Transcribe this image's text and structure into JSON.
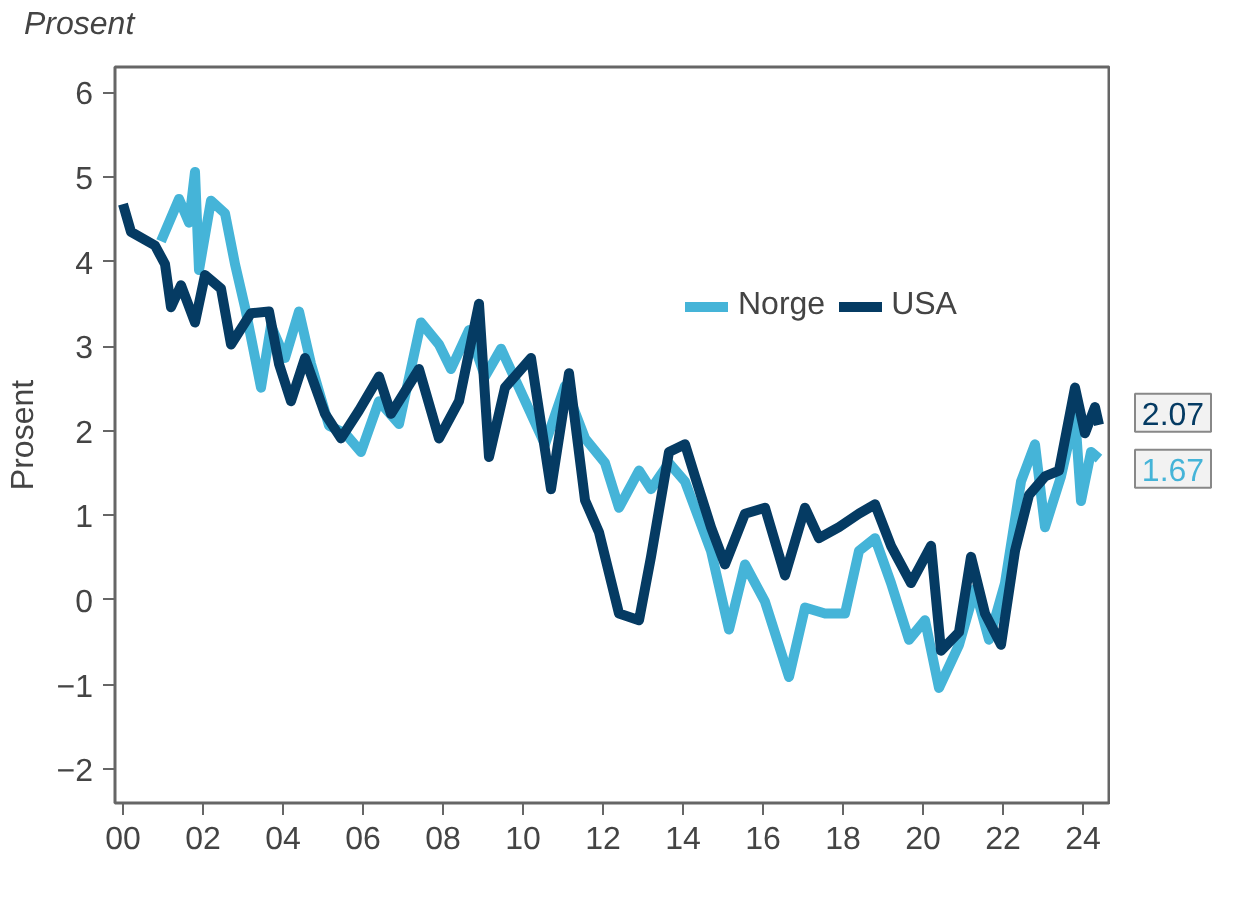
{
  "chart_data": {
    "type": "line",
    "title": "Prosent",
    "ylabel": "Prosent",
    "xlim": [
      1999.8,
      2024.7
    ],
    "xticks": [
      {
        "value": 2000,
        "label": "00"
      },
      {
        "value": 2002,
        "label": "02"
      },
      {
        "value": 2004,
        "label": "04"
      },
      {
        "value": 2006,
        "label": "06"
      },
      {
        "value": 2008,
        "label": "08"
      },
      {
        "value": 2010,
        "label": "10"
      },
      {
        "value": 2012,
        "label": "12"
      },
      {
        "value": 2014,
        "label": "14"
      },
      {
        "value": 2016,
        "label": "16"
      },
      {
        "value": 2018,
        "label": "18"
      },
      {
        "value": 2020,
        "label": "20"
      },
      {
        "value": 2022,
        "label": "22"
      },
      {
        "value": 2024,
        "label": "24"
      }
    ],
    "ylim": [
      -2.4,
      6.3
    ],
    "yticks": [
      -2,
      -1,
      0,
      1,
      2,
      3,
      4,
      5,
      6
    ],
    "grid": false,
    "legend": "top right",
    "series": [
      {
        "name": "Norge",
        "color": "#45b4d8",
        "x": [
          2000.95,
          2001.4,
          2001.65,
          2001.8,
          2001.9,
          2002.2,
          2002.55,
          2002.8,
          2003.05,
          2003.45,
          2003.7,
          2004.05,
          2004.4,
          2004.7,
          2005.15,
          2005.55,
          2005.95,
          2006.4,
          2006.9,
          2007.45,
          2007.9,
          2008.2,
          2008.65,
          2009.05,
          2009.45,
          2009.9,
          2010.55,
          2011.05,
          2011.55,
          2012.05,
          2012.4,
          2012.9,
          2013.2,
          2013.65,
          2014.05,
          2014.7,
          2015.15,
          2015.55,
          2016.05,
          2016.65,
          2017.05,
          2017.55,
          2018.05,
          2018.4,
          2018.8,
          2019.2,
          2019.65,
          2020.05,
          2020.4,
          2020.9,
          2021.3,
          2021.65,
          2022.05,
          2022.45,
          2022.8,
          2023.05,
          2023.45,
          2023.8,
          2023.95,
          2024.2,
          2024.4
        ],
        "values": [
          4.24,
          4.74,
          4.46,
          5.06,
          3.9,
          4.72,
          4.57,
          3.97,
          3.46,
          2.51,
          3.24,
          2.86,
          3.41,
          2.79,
          2.06,
          1.97,
          1.75,
          2.35,
          2.08,
          3.28,
          3.02,
          2.73,
          3.19,
          2.64,
          2.97,
          2.51,
          1.84,
          2.53,
          1.91,
          1.62,
          1.09,
          1.53,
          1.31,
          1.62,
          1.4,
          0.58,
          -0.35,
          0.42,
          -0.02,
          -0.91,
          -0.09,
          -0.16,
          -0.16,
          0.58,
          0.73,
          0.2,
          -0.47,
          -0.24,
          -1.04,
          -0.53,
          0.13,
          -0.47,
          0.2,
          1.4,
          1.84,
          0.86,
          1.46,
          2.2,
          1.17,
          1.75,
          1.67
        ]
      },
      {
        "name": "USA",
        "color": "#053b63",
        "x": [
          2000.0,
          2000.2,
          2000.8,
          2001.05,
          2001.2,
          2001.45,
          2001.8,
          2002.05,
          2002.45,
          2002.7,
          2003.2,
          2003.65,
          2003.9,
          2004.2,
          2004.55,
          2005.05,
          2005.45,
          2005.9,
          2006.4,
          2006.7,
          2007.4,
          2007.9,
          2008.4,
          2008.9,
          2009.15,
          2009.55,
          2010.2,
          2010.7,
          2011.15,
          2011.55,
          2011.9,
          2012.4,
          2012.9,
          2013.2,
          2013.65,
          2014.05,
          2014.3,
          2014.7,
          2015.05,
          2015.55,
          2016.05,
          2016.55,
          2017.05,
          2017.4,
          2017.9,
          2018.4,
          2018.8,
          2019.2,
          2019.7,
          2020.2,
          2020.45,
          2020.9,
          2021.2,
          2021.55,
          2021.95,
          2022.3,
          2022.65,
          2023.05,
          2023.4,
          2023.8,
          2024.05,
          2024.3,
          2024.4
        ],
        "values": [
          4.68,
          4.35,
          4.19,
          3.97,
          3.46,
          3.72,
          3.28,
          3.84,
          3.68,
          3.02,
          3.39,
          3.41,
          2.79,
          2.35,
          2.86,
          2.2,
          1.91,
          2.24,
          2.64,
          2.2,
          2.73,
          1.91,
          2.35,
          3.5,
          1.69,
          2.51,
          2.86,
          1.31,
          2.68,
          1.18,
          0.8,
          -0.16,
          -0.24,
          0.51,
          1.75,
          1.84,
          1.46,
          0.86,
          0.42,
          1.02,
          1.09,
          0.29,
          1.09,
          0.73,
          0.86,
          1.02,
          1.13,
          0.64,
          0.2,
          0.64,
          -0.6,
          -0.38,
          0.51,
          -0.16,
          -0.53,
          0.58,
          1.24,
          1.46,
          1.53,
          2.51,
          1.97,
          2.28,
          2.07
        ]
      }
    ],
    "annotations": [
      {
        "text": "2.07",
        "x": 2024.4,
        "y": 2.07
      },
      {
        "text": "1.67",
        "x": 2024.4,
        "y": 1.67
      }
    ]
  }
}
